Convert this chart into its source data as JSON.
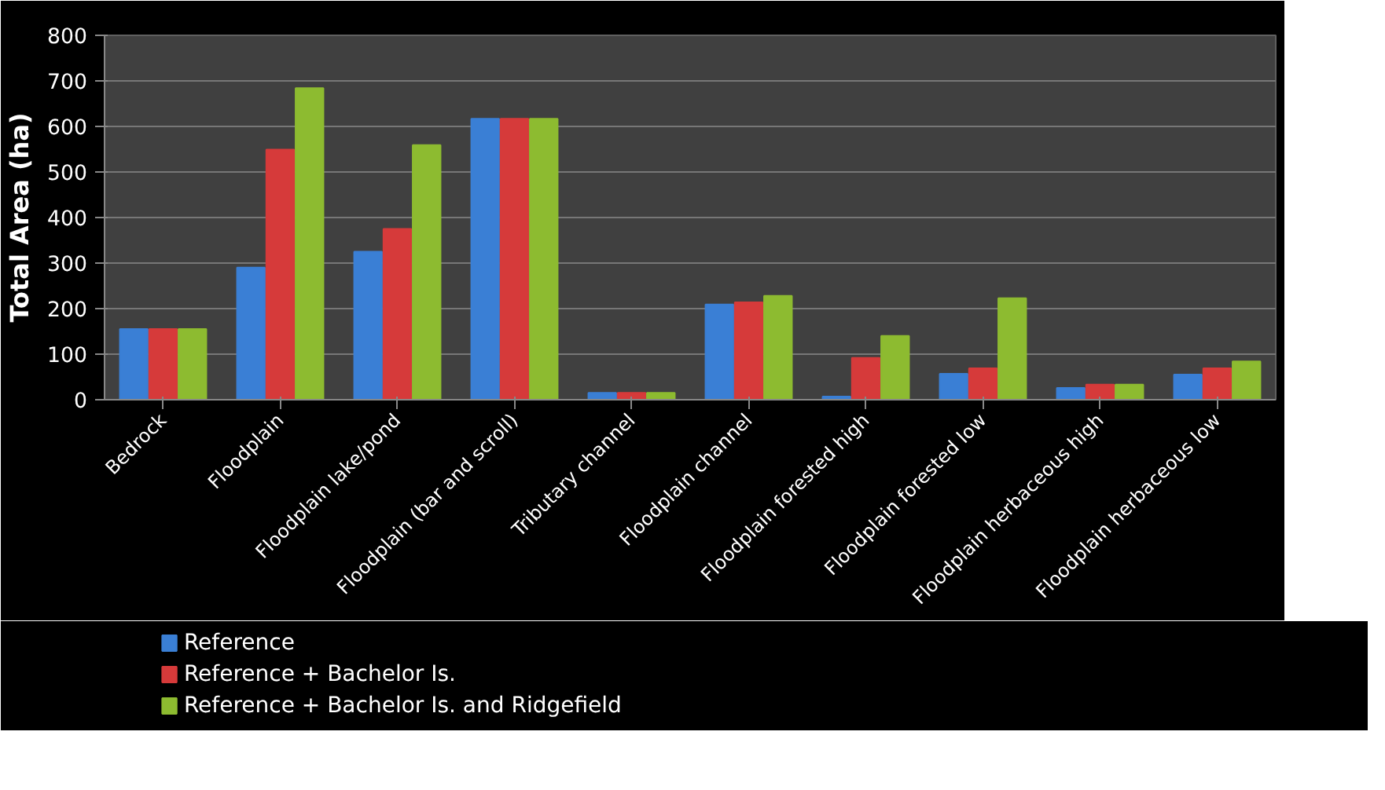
{
  "chart_data": {
    "type": "bar",
    "ylabel": "Total Area (ha)",
    "categories": [
      "Bedrock",
      "Floodplain",
      "Floodplain lake/pond",
      "Floodplain (bar and scroll)",
      "Tributary channel",
      "Floodplain channel",
      "Floodplain forested high",
      "Floodplain forested low",
      "Floodplain herbaceous high",
      "Floodplain herbaceous low"
    ],
    "series": [
      {
        "name": "Reference",
        "color": "#3a7fd5",
        "values": [
          155,
          290,
          325,
          617,
          15,
          209,
          7,
          57,
          26,
          55
        ]
      },
      {
        "name": "Reference + Bachelor Is.",
        "color": "#d63a3a",
        "values": [
          155,
          549,
          375,
          617,
          15,
          214,
          92,
          69,
          33,
          69
        ]
      },
      {
        "name": "Reference + Bachelor Is. and Ridgefield",
        "color": "#8dbb30",
        "values": [
          155,
          684,
          559,
          617,
          15,
          228,
          140,
          223,
          33,
          84
        ]
      }
    ],
    "ylim": [
      0,
      800
    ],
    "yticks": [
      0,
      100,
      200,
      300,
      400,
      500,
      600,
      700,
      800
    ],
    "grid": "y",
    "legend": "bottom left"
  }
}
